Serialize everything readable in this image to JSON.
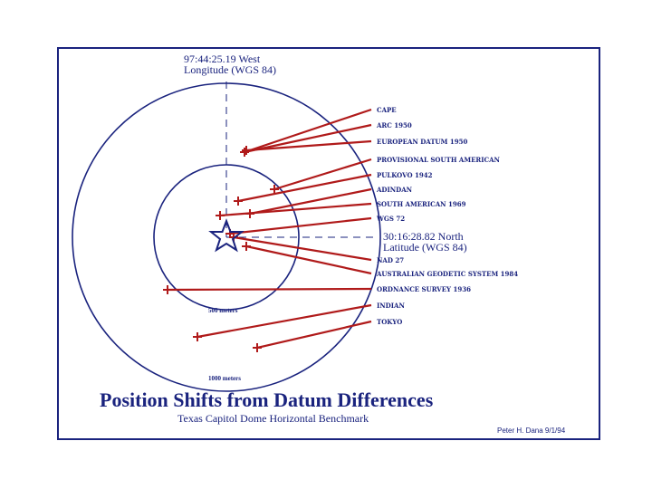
{
  "longitude_label": {
    "line1": "97:44:25.19 West",
    "line2": "Longitude (WGS 84)"
  },
  "latitude_label": {
    "line1": "30:16:28.82 North",
    "line2": "Latitude (WGS 84)"
  },
  "rings": {
    "inner": "500 meters",
    "outer": "1000 meters"
  },
  "datums": [
    "CAPE",
    "ARC 1950",
    "EUROPEAN DATUM 1950",
    "PROVISIONAL SOUTH AMERICAN",
    "PULKOVO 1942",
    "ADINDAN",
    "SOUTH AMERICAN 1969",
    "WGS 72",
    "NAD 27",
    "AUSTRALIAN GEODETIC SYSTEM 1984",
    "ORDNANCE SURVEY 1936",
    "INDIAN",
    "TOKYO"
  ],
  "title": "Position Shifts from Datum Differences",
  "subtitle": "Texas Capitol Dome Horizontal Benchmark",
  "credit": "Peter H. Dana 9/1/94",
  "colors": {
    "navy": "#1a237e",
    "red": "#b01a1a"
  }
}
